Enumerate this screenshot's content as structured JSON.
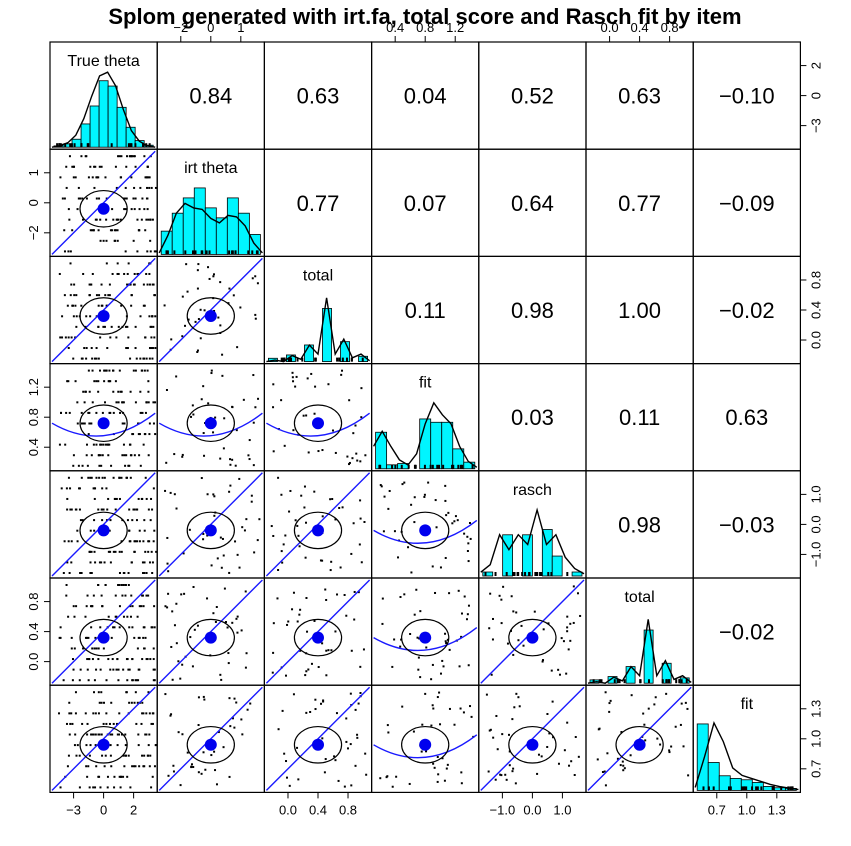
{
  "chart_data": {
    "type": "scatter",
    "title": "Splom generated with irt.fa, total score and Rasch fit by item",
    "variables": [
      {
        "name": "True theta",
        "range": [
          -4,
          4
        ],
        "ticks": [
          -3,
          0,
          2
        ],
        "ticks_outer": [
          -3,
          0,
          2
        ]
      },
      {
        "name": "irt theta",
        "range": [
          -2.1,
          2.2
        ],
        "ticks": [
          -2,
          0,
          1
        ],
        "ticks_outer": [
          -2,
          0,
          1
        ]
      },
      {
        "name": "total",
        "range": [
          -0.02,
          1.02
        ],
        "ticks": [
          0.0,
          0.4,
          0.8
        ],
        "tick_labels": [
          "0.0",
          "0.4",
          "0.8"
        ]
      },
      {
        "name": "fit",
        "range": [
          0.38,
          1.35
        ],
        "ticks": [
          0.4,
          0.8,
          1.2
        ],
        "tick_labels": [
          "0.4",
          "0.8",
          "1.2"
        ]
      },
      {
        "name": "rasch",
        "range": [
          -1.12,
          1.12
        ],
        "ticks": [
          -1.0,
          0.0,
          1.0
        ],
        "tick_labels": [
          "-1.0",
          "0.0",
          "1.0"
        ]
      },
      {
        "name": "total",
        "range": [
          -0.02,
          1.02
        ],
        "ticks": [
          0.0,
          0.4,
          0.8
        ],
        "tick_labels": [
          "0.0",
          "0.4",
          "0.8"
        ]
      },
      {
        "name": "fit",
        "range": [
          0.66,
          1.38
        ],
        "ticks": [
          0.7,
          1.0,
          1.3
        ],
        "tick_labels": [
          "0.7",
          "1.0",
          "1.3"
        ]
      }
    ],
    "correlations": [
      [
        "",
        "0.84",
        "0.63",
        "0.04",
        "0.52",
        "0.63",
        "−0.10"
      ],
      [
        "",
        "",
        "0.77",
        "0.07",
        "0.64",
        "0.77",
        "−0.09"
      ],
      [
        "",
        "",
        "",
        "0.11",
        "0.98",
        "1.00",
        "−0.02"
      ],
      [
        "",
        "",
        "",
        "",
        "0.03",
        "0.11",
        "0.63"
      ],
      [
        "",
        "",
        "",
        "",
        "",
        "0.98",
        "−0.03"
      ],
      [
        "",
        "",
        "",
        "",
        "",
        "",
        "−0.02"
      ]
    ],
    "top_axis_labels": [
      [
        "−2",
        "0",
        "1"
      ],
      [
        "0.4",
        "0.8",
        "1.2"
      ],
      [
        "0.0",
        "0.4",
        "0.8"
      ]
    ],
    "bottom_axis_labels": [
      [
        "−3",
        "0",
        "2"
      ],
      [
        "0.0",
        "0.4",
        "0.8"
      ],
      [
        "−1.0",
        "0.0",
        "1.0"
      ],
      [
        "0.7",
        "1.0",
        "1.3"
      ]
    ],
    "left_axis_labels": [
      [
        "−2",
        "0",
        "1"
      ],
      [
        "0.4",
        "0.8",
        "1.2"
      ],
      [
        "0.0",
        "0.4",
        "0.8"
      ]
    ],
    "right_axis_labels": [
      [
        "−3",
        "0",
        "2"
      ],
      [
        "0.0",
        "0.4",
        "0.8"
      ],
      [
        "−1.0",
        "0.0",
        "1.0"
      ],
      [
        "0.7",
        "1.0",
        "1.3"
      ]
    ],
    "histograms": [
      [
        0.02,
        0.05,
        0.12,
        0.35,
        0.62,
        1.0,
        0.92,
        0.6,
        0.3,
        0.1,
        0.03
      ],
      [
        0.35,
        0.62,
        0.85,
        1.0,
        0.7,
        0.55,
        0.85,
        0.62,
        0.3
      ],
      [
        0.05,
        0.0,
        0.1,
        0.0,
        0.25,
        0.0,
        0.8,
        0.0,
        0.3,
        0.0,
        0.08
      ],
      [
        0.55,
        0.06,
        0.08,
        0.0,
        0.75,
        0.7,
        0.7,
        0.3,
        0.1
      ],
      [
        0.06,
        0.0,
        0.62,
        0.0,
        0.62,
        0.0,
        0.7,
        0.3,
        0.0,
        0.06
      ],
      [
        0.05,
        0.0,
        0.1,
        0.0,
        0.25,
        0.0,
        0.8,
        0.0,
        0.3,
        0.0,
        0.08
      ],
      [
        1.0,
        0.42,
        0.22,
        0.18,
        0.16,
        0.12,
        0.06,
        0.04,
        0.03
      ]
    ],
    "densities": [
      [
        0.0,
        0.02,
        0.06,
        0.16,
        0.38,
        0.68,
        0.95,
        1.0,
        0.82,
        0.5,
        0.22,
        0.08,
        0.02,
        0.0
      ],
      [
        0.02,
        0.25,
        0.55,
        0.68,
        0.62,
        0.6,
        0.48,
        0.42,
        0.52,
        0.5,
        0.38,
        0.15,
        0.02
      ],
      [
        0.0,
        0.02,
        0.0,
        0.08,
        0.03,
        0.22,
        0.1,
        0.85,
        0.1,
        0.3,
        0.05,
        0.1,
        0.01
      ],
      [
        0.3,
        0.5,
        0.3,
        0.12,
        0.05,
        0.2,
        0.6,
        0.88,
        0.72,
        0.6,
        0.3,
        0.1,
        0.02
      ],
      [
        0.05,
        0.15,
        0.55,
        0.35,
        0.55,
        0.42,
        0.88,
        0.42,
        0.55,
        0.25,
        0.1,
        0.03
      ],
      [
        0.0,
        0.02,
        0.0,
        0.08,
        0.03,
        0.22,
        0.1,
        0.85,
        0.1,
        0.3,
        0.05,
        0.1,
        0.01
      ],
      [
        0.04,
        0.45,
        0.9,
        0.65,
        0.3,
        0.2,
        0.16,
        0.12,
        0.08,
        0.05,
        0.03,
        0.01
      ]
    ]
  }
}
